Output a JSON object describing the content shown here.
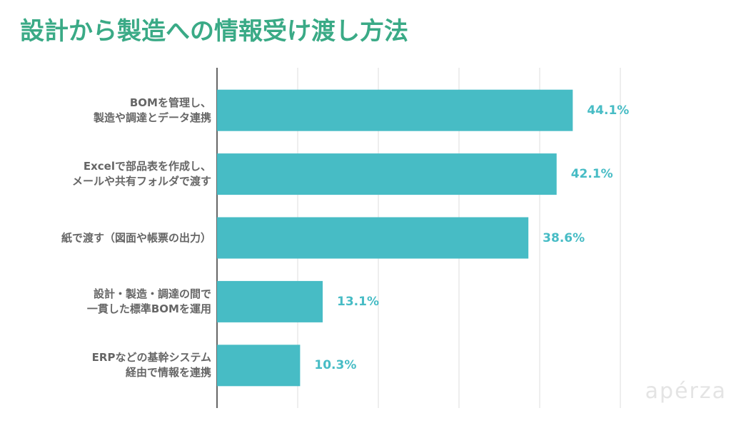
{
  "chart_data": {
    "type": "barh",
    "title": "設計から製造への情報受け渡し方法",
    "categories": [
      "BOMを管理し、\n製造や調達とデータ連携",
      "Excelで部品表を作成し、\nメールや共有フォルダで渡す",
      "紙で渡す（図面や帳票の出力）",
      "設計・製造・調達の間で\n一貫した標準BOMを運用",
      "ERPなどの基幹システム\n経由で情報を連携"
    ],
    "values": [
      44.1,
      42.1,
      38.6,
      13.1,
      10.3
    ],
    "value_labels": [
      "44.1%",
      "42.1%",
      "38.6%",
      "13.1%",
      "10.3%"
    ],
    "color": "#47bcc5",
    "xlim": [
      0,
      50
    ],
    "xticks": [
      0,
      10,
      20,
      30,
      40,
      50
    ],
    "grid": true,
    "watermark": "apérza"
  }
}
